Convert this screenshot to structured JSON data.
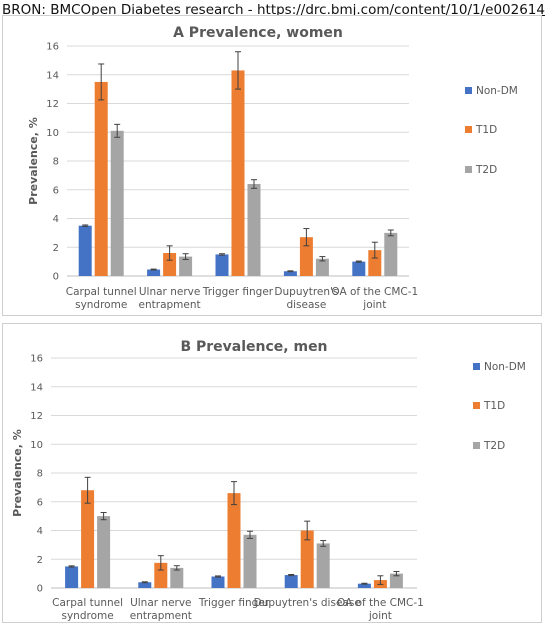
{
  "source": {
    "prefix": "BRON: BMCOpen Diabetes research - ",
    "url": "https://drc.bmj.com/content/10/1/e002614"
  },
  "colors": {
    "Non-DM": "#4472c4",
    "T1D": "#ed7d31",
    "T2D": "#a5a5a5",
    "grid": "#d9d9d9",
    "axis_text": "#595959"
  },
  "chart_data": [
    {
      "type": "bar",
      "title": "A  Prevalence, women",
      "ylabel": "Prevalence, %",
      "xlabel": "",
      "ylim": [
        0,
        16
      ],
      "yticks": [
        0,
        2,
        4,
        6,
        8,
        10,
        12,
        14,
        16
      ],
      "grid": true,
      "legend_position": "right",
      "categories": [
        [
          "Carpal tunnel",
          "syndrome"
        ],
        [
          "Ulnar nerve",
          "entrapment"
        ],
        [
          "Trigger finger"
        ],
        [
          "Dupuytren's",
          "disease"
        ],
        [
          "OA of the CMC-1",
          "joint"
        ]
      ],
      "series": [
        {
          "name": "Non-DM",
          "values": [
            3.5,
            0.45,
            1.5,
            0.33,
            1.0
          ],
          "errors": [
            0.05,
            0.03,
            0.05,
            0.03,
            0.04
          ]
        },
        {
          "name": "T1D",
          "values": [
            13.5,
            1.6,
            14.3,
            2.7,
            1.8
          ],
          "errors": [
            1.25,
            0.5,
            1.3,
            0.6,
            0.55
          ]
        },
        {
          "name": "T2D",
          "values": [
            10.1,
            1.35,
            6.4,
            1.2,
            3.0
          ],
          "errors": [
            0.45,
            0.2,
            0.3,
            0.15,
            0.2
          ]
        }
      ]
    },
    {
      "type": "bar",
      "title": "B  Prevalence, men",
      "ylabel": "Prevalence, %",
      "xlabel": "",
      "ylim": [
        0,
        16
      ],
      "yticks": [
        0,
        2,
        4,
        6,
        8,
        10,
        12,
        14,
        16
      ],
      "grid": true,
      "legend_position": "right",
      "categories": [
        [
          "Carpal tunnel",
          "syndrome"
        ],
        [
          "Ulnar nerve",
          "entrapment"
        ],
        [
          "Trigger finger"
        ],
        [
          "Dupuytren's disease"
        ],
        [
          "OA of the CMC-1",
          "joint"
        ]
      ],
      "series": [
        {
          "name": "Non-DM",
          "values": [
            1.5,
            0.4,
            0.8,
            0.9,
            0.3
          ],
          "errors": [
            0.04,
            0.03,
            0.04,
            0.04,
            0.03
          ]
        },
        {
          "name": "T1D",
          "values": [
            6.8,
            1.75,
            6.6,
            4.0,
            0.55
          ],
          "errors": [
            0.9,
            0.5,
            0.8,
            0.65,
            0.3
          ]
        },
        {
          "name": "T2D",
          "values": [
            5.0,
            1.4,
            3.7,
            3.1,
            1.0
          ],
          "errors": [
            0.25,
            0.15,
            0.25,
            0.2,
            0.15
          ]
        }
      ]
    }
  ]
}
